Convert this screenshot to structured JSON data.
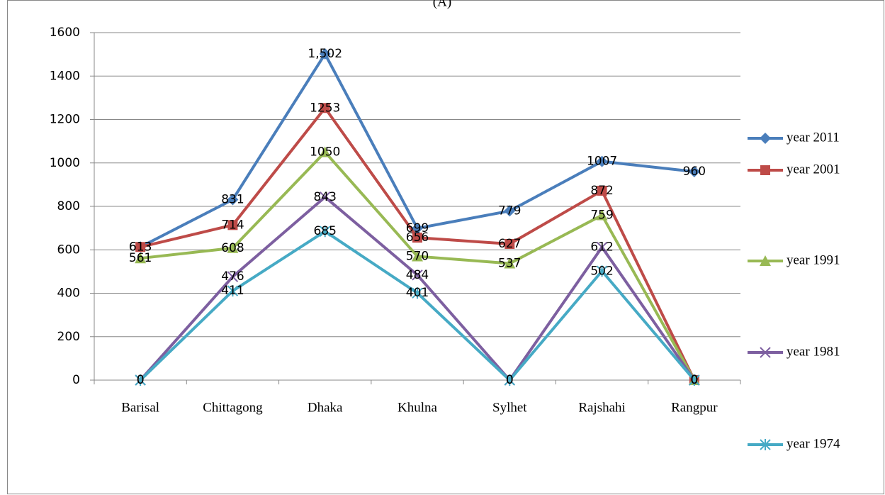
{
  "chart_data": {
    "type": "line",
    "title": "(A)",
    "categories": [
      "Barisal",
      "Chittagong",
      "Dhaka",
      "Khulna",
      "Sylhet",
      "Rajshahi",
      "Rangpur"
    ],
    "series": [
      {
        "name": "year 2011",
        "color": "#4a7ebb",
        "marker": "diamond",
        "values": [
          613,
          831,
          1502,
          699,
          779,
          1007,
          960
        ],
        "value_labels": [
          "613",
          "831",
          "1,502",
          "699",
          "779",
          "1007",
          "960"
        ]
      },
      {
        "name": "year 2001",
        "color": "#be4b48",
        "marker": "square",
        "values": [
          613,
          714,
          1253,
          656,
          627,
          872,
          0
        ]
      },
      {
        "name": "year 1991",
        "color": "#98b954",
        "marker": "triangle",
        "values": [
          561,
          608,
          1050,
          570,
          537,
          759,
          0
        ]
      },
      {
        "name": "year 1981",
        "color": "#7d5fa0",
        "marker": "x",
        "values": [
          0,
          476,
          843,
          484,
          0,
          612,
          0
        ]
      },
      {
        "name": "year 1974",
        "color": "#46aac5",
        "marker": "star",
        "values": [
          0,
          411,
          685,
          401,
          0,
          502,
          0
        ]
      }
    ],
    "ylim": [
      0,
      1600
    ],
    "yticks": [
      0,
      200,
      400,
      600,
      800,
      1000,
      1200,
      1400,
      1600
    ],
    "grid": true,
    "legend": "right"
  }
}
